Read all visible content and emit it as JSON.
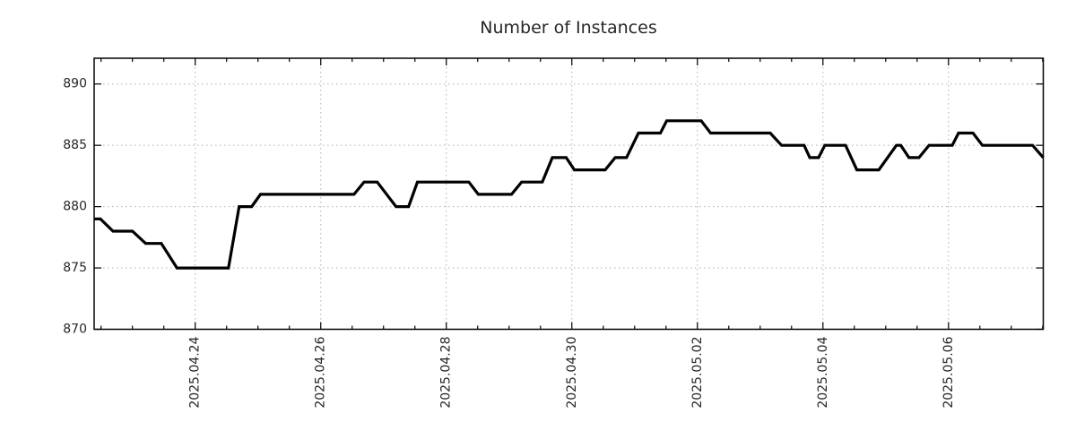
{
  "chart_data": {
    "type": "line",
    "title": "Number of Instances",
    "xlabel": "",
    "ylabel": "",
    "grid": true,
    "legend": "none",
    "x_unit": "days relative to 2025.04.24 00:00",
    "xlim": [
      -1.61,
      13.51
    ],
    "ylim": [
      870,
      892.1
    ],
    "y_ticks": [
      870,
      875,
      880,
      885,
      890
    ],
    "y_tick_labels": [
      "870",
      "875",
      "880",
      "885",
      "890"
    ],
    "x_major_ticks": [
      0,
      2,
      4,
      6,
      8,
      10,
      12
    ],
    "x_tick_labels": [
      "2025.04.24",
      "2025.04.26",
      "2025.04.28",
      "2025.04.30",
      "2025.05.02",
      "2025.05.04",
      "2025.05.06"
    ],
    "x_minor_tick_step": 0.5,
    "line_color": "#000000",
    "grid_color": "#b0b0b0",
    "axis_color": "#000000",
    "background": "#ffffff",
    "series": [
      {
        "name": "instances",
        "points": [
          [
            -1.61,
            879
          ],
          [
            -1.51,
            879
          ],
          [
            -1.31,
            878
          ],
          [
            -1.0,
            878
          ],
          [
            -0.79,
            877
          ],
          [
            -0.54,
            877
          ],
          [
            -0.29,
            875
          ],
          [
            0.53,
            875
          ],
          [
            0.7,
            880
          ],
          [
            0.9,
            880
          ],
          [
            1.04,
            881
          ],
          [
            2.53,
            881
          ],
          [
            2.69,
            882
          ],
          [
            2.9,
            882
          ],
          [
            3.2,
            880
          ],
          [
            3.4,
            880
          ],
          [
            3.54,
            882
          ],
          [
            4.36,
            882
          ],
          [
            4.51,
            881
          ],
          [
            5.04,
            881
          ],
          [
            5.2,
            882
          ],
          [
            5.53,
            882
          ],
          [
            5.69,
            884
          ],
          [
            5.91,
            884
          ],
          [
            6.04,
            883
          ],
          [
            6.53,
            883
          ],
          [
            6.69,
            884
          ],
          [
            6.87,
            884
          ],
          [
            7.06,
            886
          ],
          [
            7.41,
            886
          ],
          [
            7.51,
            887
          ],
          [
            8.06,
            887
          ],
          [
            8.21,
            886
          ],
          [
            9.16,
            886
          ],
          [
            9.34,
            885
          ],
          [
            9.7,
            885
          ],
          [
            9.79,
            884
          ],
          [
            9.93,
            884
          ],
          [
            10.03,
            885
          ],
          [
            10.36,
            885
          ],
          [
            10.54,
            883
          ],
          [
            10.89,
            883
          ],
          [
            11.17,
            885
          ],
          [
            11.24,
            885
          ],
          [
            11.37,
            884
          ],
          [
            11.53,
            884
          ],
          [
            11.69,
            885
          ],
          [
            12.06,
            885
          ],
          [
            12.16,
            886
          ],
          [
            12.39,
            886
          ],
          [
            12.54,
            885
          ],
          [
            13.34,
            885
          ],
          [
            13.51,
            884
          ]
        ]
      }
    ]
  }
}
